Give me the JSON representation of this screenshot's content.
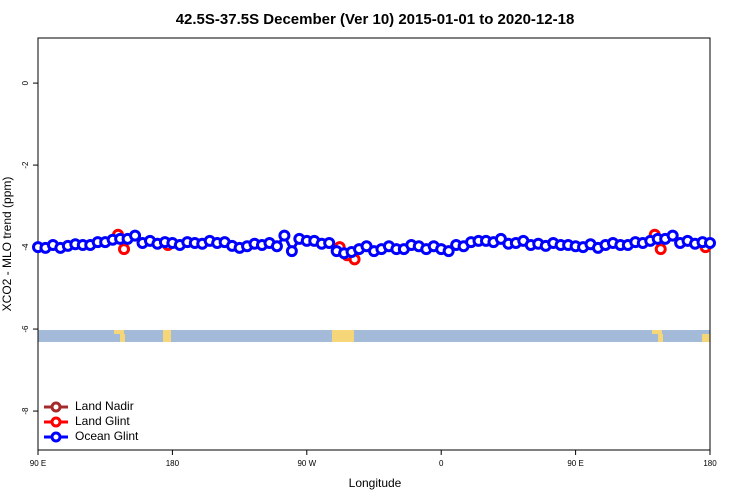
{
  "chart_data": {
    "type": "line",
    "title": "42.5S-37.5S December (Ver 10)   2015-01-01 to 2020-12-18",
    "x_label": "Longitude",
    "y_label": "XCO2 - MLO trend (ppm)",
    "xlim": [
      90,
      540
    ],
    "ylim": [
      -8.95,
      1.1
    ],
    "xticks": [
      {
        "value": 90,
        "label": "90 E"
      },
      180,
      {
        "value": 270,
        "label": "90 W"
      },
      {
        "value": 360,
        "label": "0"
      },
      {
        "value": 450,
        "label": "90 E"
      },
      {
        "value": 540,
        "label": "180"
      }
    ],
    "yticks": [
      0,
      -2,
      -4,
      -6,
      -8
    ],
    "legend": "bottom-left",
    "series": [
      {
        "name": "Land Nadir",
        "color": "#a52a2a",
        "x": [],
        "values": []
      },
      {
        "name": "Land Glint",
        "color": "#ff0000",
        "x": [
          143.6,
          147.6,
          177,
          292,
          297,
          302,
          503,
          507,
          537
        ],
        "values": [
          -3.7,
          -4.05,
          -3.95,
          -4.0,
          -4.2,
          -4.3,
          -3.7,
          -4.05,
          -4.0
        ]
      },
      {
        "name": "Ocean Glint",
        "color": "#0000ff",
        "x": [
          90,
          95,
          100,
          105,
          110,
          115,
          120,
          125,
          130,
          135,
          140,
          145,
          150,
          155,
          160,
          165,
          170,
          175,
          180,
          185,
          190,
          195,
          200,
          205,
          210,
          215,
          220,
          225,
          230,
          235,
          240,
          245,
          250,
          255,
          260,
          265,
          270,
          275,
          280,
          285,
          290,
          295,
          300,
          305,
          310,
          315,
          320,
          325,
          330,
          335,
          340,
          345,
          350,
          355,
          360,
          365,
          370,
          375,
          380,
          385,
          390,
          395,
          400,
          405,
          410,
          415,
          420,
          425,
          430,
          435,
          440,
          445,
          450,
          455,
          460,
          465,
          470,
          475,
          480,
          485,
          490,
          495,
          500,
          505,
          510,
          515,
          520,
          525,
          530,
          535,
          540
        ],
        "values": [
          -4.0,
          -4.02,
          -3.95,
          -4.02,
          -3.97,
          -3.93,
          -3.95,
          -3.95,
          -3.88,
          -3.88,
          -3.82,
          -3.8,
          -3.8,
          -3.72,
          -3.9,
          -3.85,
          -3.92,
          -3.88,
          -3.9,
          -3.95,
          -3.88,
          -3.9,
          -3.92,
          -3.85,
          -3.9,
          -3.88,
          -3.97,
          -4.02,
          -3.98,
          -3.92,
          -3.95,
          -3.9,
          -3.98,
          -3.72,
          -4.1,
          -3.8,
          -3.85,
          -3.85,
          -3.92,
          -3.9,
          -4.1,
          -4.15,
          -4.12,
          -4.05,
          -3.98,
          -4.1,
          -4.05,
          -3.98,
          -4.05,
          -4.05,
          -3.95,
          -3.98,
          -4.05,
          -3.98,
          -4.05,
          -4.1,
          -3.95,
          -3.98,
          -3.88,
          -3.85,
          -3.85,
          -3.88,
          -3.8,
          -3.92,
          -3.9,
          -3.85,
          -3.95,
          -3.92,
          -3.97,
          -3.9,
          -3.95,
          -3.95,
          -3.98,
          -4.0,
          -3.93,
          -4.02,
          -3.95,
          -3.9,
          -3.95,
          -3.95,
          -3.88,
          -3.9,
          -3.85,
          -3.8,
          -3.8,
          -3.72,
          -3.9,
          -3.85,
          -3.92,
          -3.88,
          -3.9
        ]
      }
    ]
  }
}
